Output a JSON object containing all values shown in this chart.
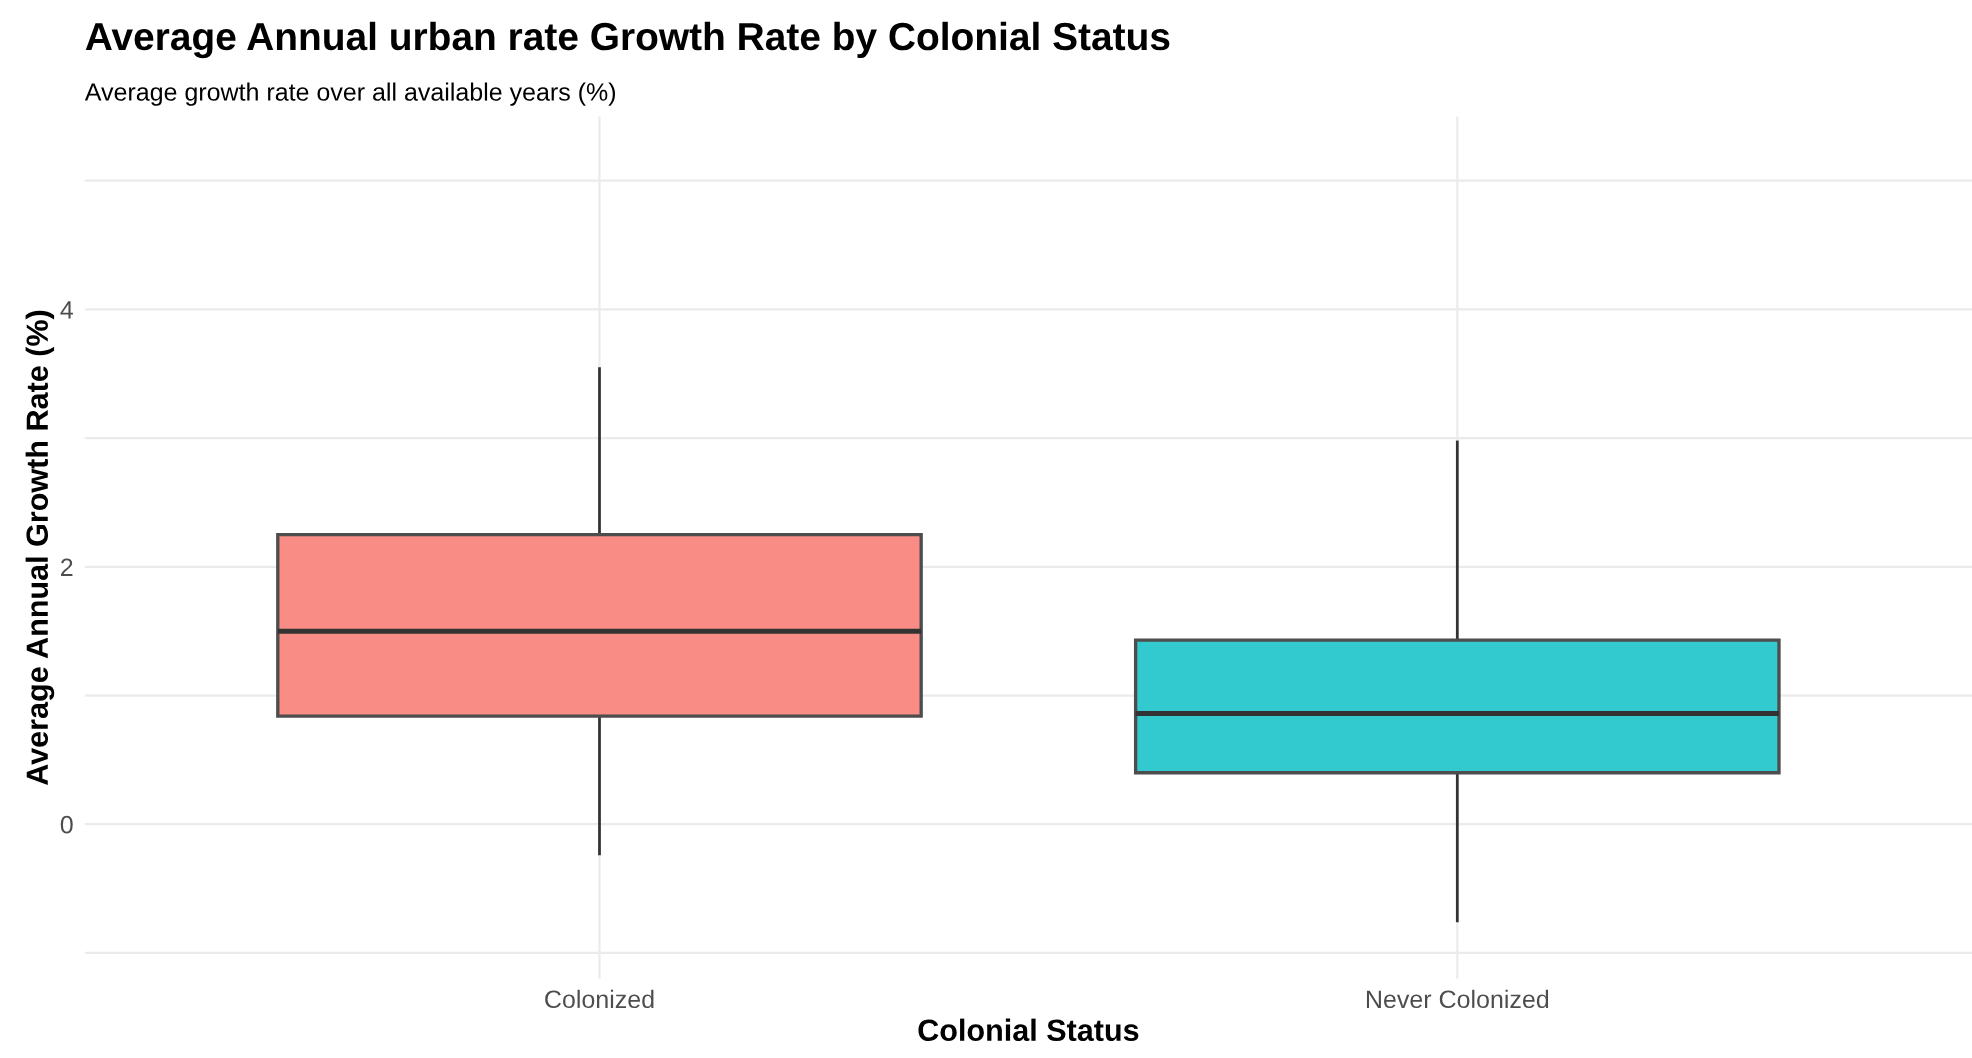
{
  "chart_data": {
    "type": "box",
    "title": "Average Annual urban rate Growth Rate by Colonial Status",
    "subtitle": "Average growth rate over all available years (%)",
    "xlabel": "Colonial Status",
    "ylabel": "Average Annual Growth Rate (%)",
    "categories": [
      "Colonized",
      "Never Colonized"
    ],
    "boxes": [
      {
        "low": -0.23,
        "q1": 0.84,
        "median": 1.5,
        "q3": 2.25,
        "high": 3.54
      },
      {
        "low": -0.75,
        "q1": 0.4,
        "median": 0.86,
        "q3": 1.43,
        "high": 2.97
      }
    ],
    "colors": [
      "#f98c85",
      "#33cacf"
    ],
    "ylim": [
      -1.2,
      5.5
    ],
    "yticks": [
      {
        "value": -1,
        "label": null
      },
      0,
      {
        "value": 1,
        "label": null
      },
      2,
      {
        "value": 3,
        "label": null
      },
      4,
      {
        "value": 5,
        "label": null
      }
    ],
    "grid": true,
    "legend": false
  }
}
